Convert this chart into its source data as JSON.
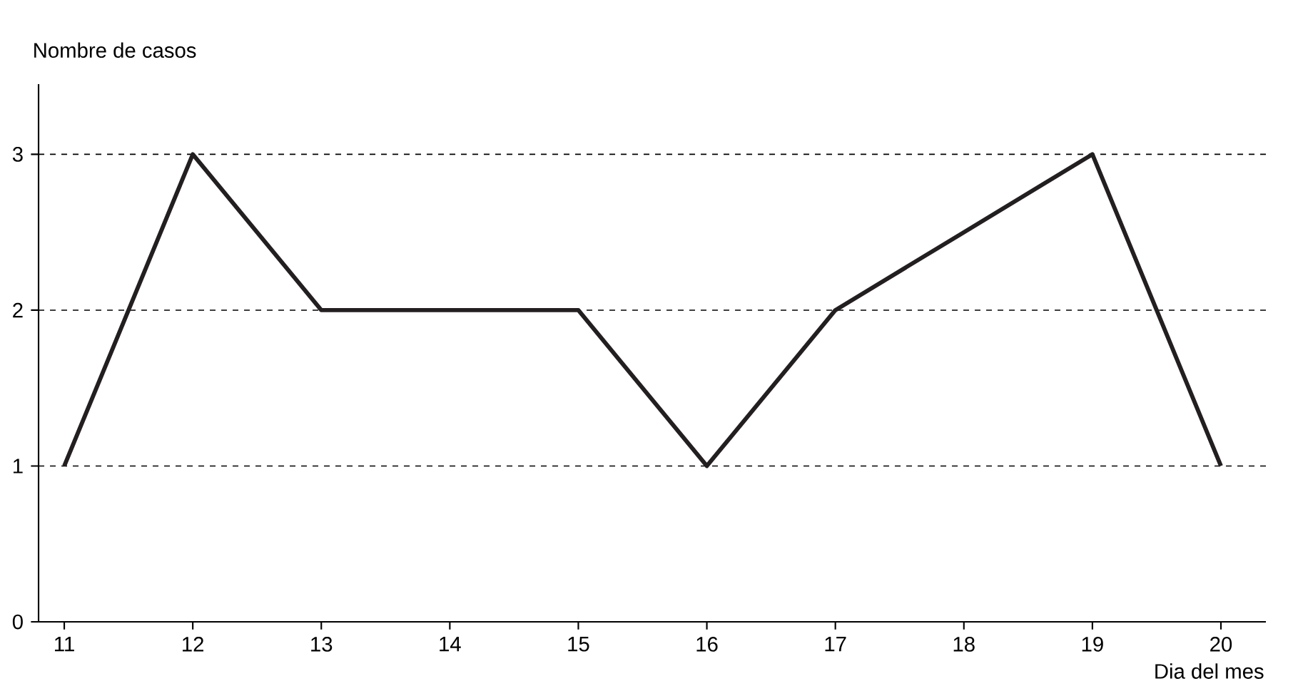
{
  "chart_data": {
    "type": "line",
    "xlabel": "Dia del mes",
    "ylabel": "Nombre de casos",
    "x": [
      11,
      12,
      13,
      14,
      15,
      16,
      17,
      18,
      19,
      20
    ],
    "series": [
      {
        "color": "#231f20",
        "values": [
          1,
          3,
          2,
          2,
          2,
          1,
          2,
          2.5,
          3,
          1
        ]
      }
    ],
    "xlim": [
      10.8,
      20.35
    ],
    "ylim": [
      0,
      3.45
    ],
    "xticks": [
      11,
      12,
      13,
      14,
      15,
      16,
      17,
      18,
      19,
      20
    ],
    "yticks": [
      0,
      1,
      2,
      3
    ],
    "grid": "y",
    "marker": "none",
    "line_style": "solid"
  }
}
